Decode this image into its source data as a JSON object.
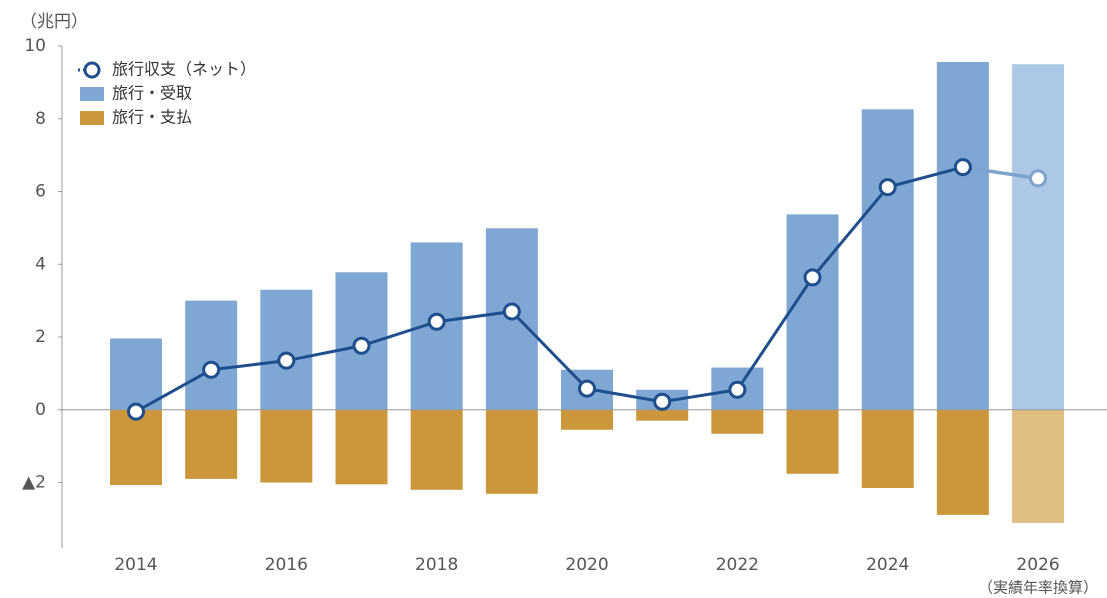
{
  "chart_data": {
    "type": "bar_line",
    "unit_label": "（兆円）",
    "annotation": "（実績年率換算）",
    "categories": [
      "2014",
      null,
      "2016",
      null,
      "2018",
      null,
      "2020",
      null,
      "2022",
      null,
      "2024",
      null,
      "2026"
    ],
    "series": [
      {
        "name": "旅行収支（ネット）",
        "type": "line",
        "color": "#1f4e8c",
        "light_color": "#7fa3cf",
        "values": [
          -0.05,
          1.1,
          1.35,
          1.76,
          2.42,
          2.7,
          0.58,
          0.22,
          0.55,
          3.64,
          6.12,
          6.67,
          6.36
        ]
      },
      {
        "name": "旅行・受取",
        "type": "bar",
        "color": "#7fa7d4",
        "light_color": "#adc8e6",
        "values": [
          1.96,
          3.0,
          3.3,
          3.78,
          4.6,
          4.99,
          1.1,
          0.55,
          1.16,
          5.37,
          8.26,
          9.56,
          9.5
        ]
      },
      {
        "name": "旅行・支払",
        "type": "bar",
        "color": "#cc973a",
        "light_color": "#e0bd80",
        "values": [
          -2.07,
          -1.9,
          -2.0,
          -2.05,
          -2.2,
          -2.31,
          -0.55,
          -0.3,
          -0.66,
          -1.76,
          -2.15,
          -2.89,
          -3.11
        ]
      }
    ],
    "ylim": [
      -3.8,
      10
    ],
    "yticks": [
      {
        "value": -2,
        "label": "▲2"
      },
      0,
      2,
      4,
      6,
      8,
      10
    ]
  }
}
